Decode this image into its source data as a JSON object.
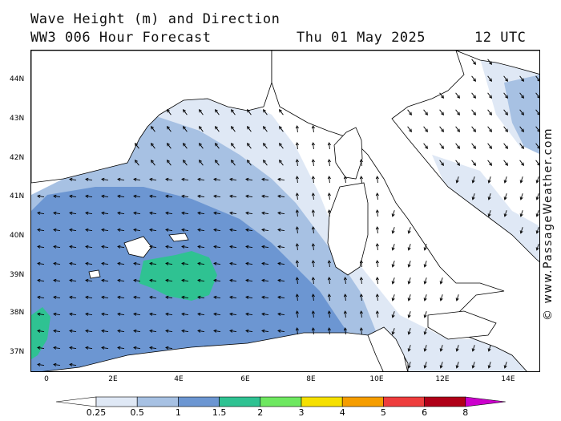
{
  "header": {
    "title_line1": "Wave Height (m) and Direction",
    "title_line2": "WW3 006 Hour Forecast",
    "date": "Thu 01 May 2025",
    "time": "12 UTC"
  },
  "watermark": "© www.PassageWeather.com",
  "axes": {
    "lat_labels": [
      "44N",
      "43N",
      "42N",
      "41N",
      "40N",
      "39N",
      "38N",
      "37N"
    ],
    "lon_labels": [
      "0",
      "2E",
      "4E",
      "6E",
      "8E",
      "10E",
      "12E",
      "14E"
    ]
  },
  "legend": {
    "labels": [
      "0.25",
      "0.5",
      "1",
      "1.5",
      "2",
      "3",
      "4",
      "5",
      "6",
      "8"
    ],
    "colors": [
      "#ffffff",
      "#dfe8f5",
      "#a7c1e3",
      "#6c96d2",
      "#2fc292",
      "#6ee860",
      "#f5e000",
      "#f59d00",
      "#ee3d3d",
      "#b00018",
      "#cc00cc"
    ]
  },
  "colors": {
    "land": "#ffffff",
    "wave_0_5_1": "#a7c1e3",
    "wave_1_1_5": "#6c96d2",
    "wave_1_5_2": "#2fc292",
    "wave_0_25_0_5": "#dfe8f5"
  }
}
